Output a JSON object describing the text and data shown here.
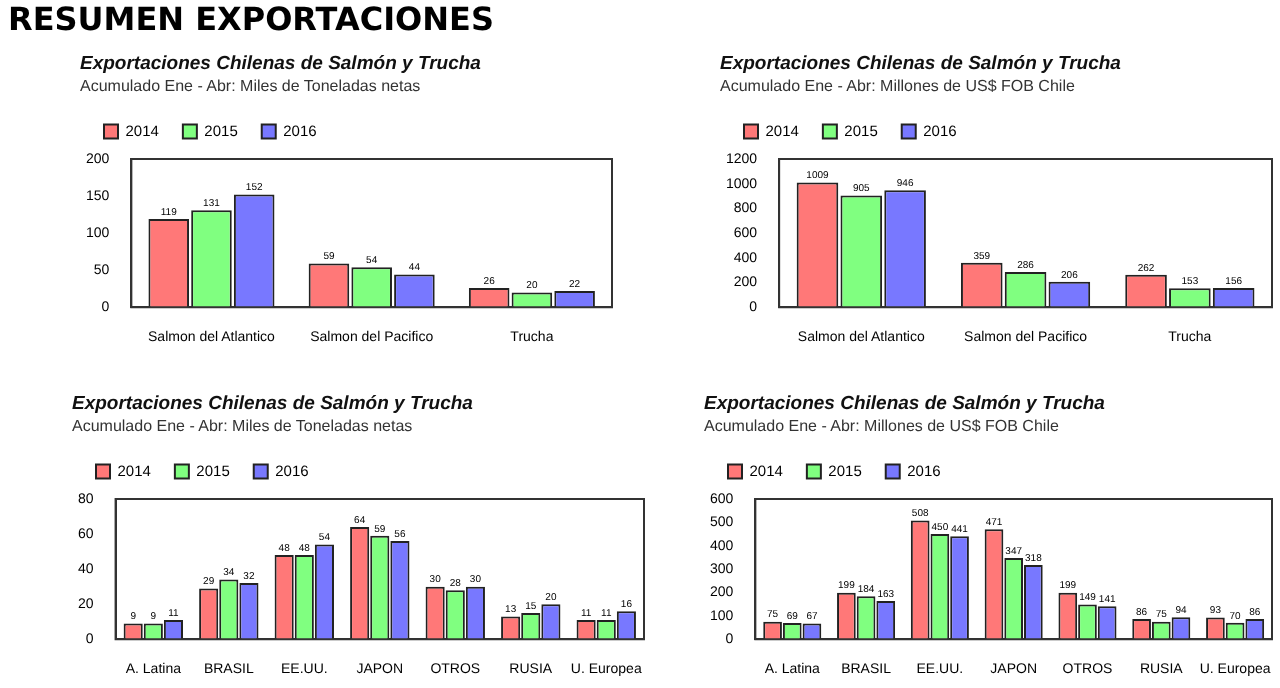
{
  "chart_data": [
    {
      "type": "other",
      "title": "RESUMEN EXPORTACIONES"
    },
    {
      "type": "bar",
      "title": "Exportaciones Chilenas de Salmón y Trucha",
      "subtitle": "Acumulado Ene - Abr: Miles de Toneladas netas",
      "categories": [
        "Salmon del Atlantico",
        "Salmon del Pacifico",
        "Trucha"
      ],
      "series": [
        {
          "name": "2014",
          "color": "#ff7878",
          "values": [
            119,
            59,
            26
          ]
        },
        {
          "name": "2015",
          "color": "#80ff80",
          "values": [
            131,
            54,
            20
          ]
        },
        {
          "name": "2016",
          "color": "#7878ff",
          "values": [
            152,
            44,
            22
          ]
        }
      ],
      "ylim": [
        0,
        200
      ],
      "yticks": [
        0,
        50,
        100,
        150,
        200
      ],
      "grid": false,
      "legend": "top",
      "data_labels": true
    },
    {
      "type": "bar",
      "title": "Exportaciones Chilenas de Salmón y Trucha",
      "subtitle": "Acumulado Ene - Abr: Millones de US$ FOB Chile",
      "categories": [
        "Salmon del Atlantico",
        "Salmon del Pacifico",
        "Trucha"
      ],
      "series": [
        {
          "name": "2014",
          "color": "#ff7878",
          "values": [
            1009,
            359,
            262
          ]
        },
        {
          "name": "2015",
          "color": "#80ff80",
          "values": [
            905,
            286,
            153
          ]
        },
        {
          "name": "2016",
          "color": "#7878ff",
          "values": [
            946,
            206,
            156
          ]
        }
      ],
      "ylim": [
        0,
        1200
      ],
      "yticks": [
        0,
        200,
        400,
        600,
        800,
        1000,
        1200
      ],
      "grid": false,
      "legend": "top",
      "data_labels": true
    },
    {
      "type": "bar",
      "title": "Exportaciones Chilenas de Salmón y Trucha",
      "subtitle": "Acumulado Ene - Abr: Miles de Toneladas netas",
      "categories": [
        "A. Latina",
        "BRASIL",
        "EE.UU.",
        "JAPON",
        "OTROS",
        "RUSIA",
        "U. Europea"
      ],
      "series": [
        {
          "name": "2014",
          "color": "#ff7878",
          "values": [
            9,
            29,
            48,
            64,
            30,
            13,
            11
          ]
        },
        {
          "name": "2015",
          "color": "#80ff80",
          "values": [
            9,
            34,
            48,
            59,
            28,
            15,
            11
          ]
        },
        {
          "name": "2016",
          "color": "#7878ff",
          "values": [
            11,
            32,
            54,
            56,
            30,
            20,
            16
          ]
        }
      ],
      "ylim": [
        0,
        80
      ],
      "yticks": [
        0,
        20,
        40,
        60,
        80
      ],
      "grid": false,
      "legend": "top",
      "data_labels": true
    },
    {
      "type": "bar",
      "title": "Exportaciones Chilenas de Salmón y Trucha",
      "subtitle": "Acumulado Ene - Abr: Millones de US$ FOB Chile",
      "categories": [
        "A. Latina",
        "BRASIL",
        "EE.UU.",
        "JAPON",
        "OTROS",
        "RUSIA",
        "U. Europea"
      ],
      "series": [
        {
          "name": "2014",
          "color": "#ff7878",
          "values": [
            75,
            199,
            508,
            471,
            199,
            86,
            93
          ]
        },
        {
          "name": "2015",
          "color": "#80ff80",
          "values": [
            69,
            184,
            450,
            347,
            149,
            75,
            70
          ]
        },
        {
          "name": "2016",
          "color": "#7878ff",
          "values": [
            67,
            163,
            441,
            318,
            141,
            94,
            86
          ]
        }
      ],
      "ylim": [
        0,
        600
      ],
      "yticks": [
        0,
        100,
        200,
        300,
        400,
        500,
        600
      ],
      "grid": false,
      "legend": "top",
      "data_labels": true
    }
  ]
}
